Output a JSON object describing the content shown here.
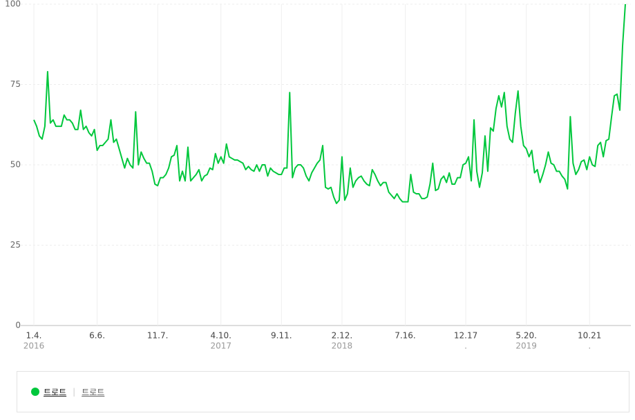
{
  "chart_data": {
    "type": "line",
    "series": [
      {
        "name": "트로트",
        "color": "#00c73c",
        "values": [
          64,
          62,
          59,
          58,
          62,
          79,
          63,
          64,
          62,
          62,
          62,
          65.5,
          64,
          64,
          63,
          61,
          61,
          67,
          61,
          62,
          60,
          59,
          61,
          54.5,
          56,
          56,
          57,
          58,
          64,
          57,
          58,
          55,
          52,
          49,
          52,
          50,
          49,
          66.5,
          50,
          54,
          52,
          50.5,
          50.5,
          48,
          44,
          43.5,
          46,
          46,
          47,
          49,
          52.5,
          53,
          56,
          45,
          48,
          45,
          55.5,
          45,
          46,
          47,
          48.5,
          45,
          46.5,
          47,
          49,
          48.5,
          53.5,
          50.5,
          52.5,
          50.5,
          56.5,
          52.5,
          52,
          51.5,
          51.5,
          51,
          50.5,
          48.5,
          49.5,
          48.5,
          48,
          50,
          48,
          50,
          50,
          46.5,
          49,
          48,
          47.5,
          47,
          47,
          49,
          49,
          72.5,
          46,
          49,
          50,
          50,
          49,
          46.5,
          45,
          47.5,
          49,
          50.5,
          51.5,
          56,
          43,
          42.5,
          43,
          40,
          38,
          39,
          52.5,
          39,
          41,
          49,
          43,
          45,
          46,
          46.5,
          45,
          44,
          43.5,
          48.5,
          47,
          45,
          43.5,
          44.5,
          44.5,
          41.5,
          40.5,
          39.5,
          41,
          39.5,
          38.5,
          38.5,
          38.5,
          47,
          41.5,
          41,
          41,
          39.5,
          39.5,
          40,
          44,
          50.5,
          42,
          42.5,
          45.5,
          46.5,
          44.5,
          47.5,
          44,
          44,
          46,
          46,
          50,
          50.5,
          52.5,
          45,
          64,
          48,
          43,
          47.5,
          59,
          48,
          61.5,
          60.5,
          67.5,
          71.5,
          68,
          72.5,
          62,
          58,
          57,
          66,
          73,
          62,
          56,
          55,
          52.5,
          54.5,
          47.5,
          48.5,
          44.5,
          47,
          50,
          54,
          50.5,
          50,
          48,
          48,
          46.5,
          45.5,
          42.5,
          65,
          50.5,
          47,
          48.5,
          51,
          51.5,
          48.5,
          52.5,
          50,
          49.5,
          56,
          57,
          52.5,
          57.5,
          58,
          65,
          71.5,
          72,
          67,
          87,
          100
        ]
      }
    ],
    "xlim": [
      0,
      215
    ],
    "xticks": [
      {
        "value": 0,
        "label": "1.4.",
        "sublabel": "2016"
      },
      {
        "value": 23,
        "label": "6.6."
      },
      {
        "value": 45,
        "label": "11.7."
      },
      {
        "value": 68,
        "label": "4.10.",
        "sublabel": "2017"
      },
      {
        "value": 90,
        "label": "9.11."
      },
      {
        "value": 112,
        "label": "2.12.",
        "sublabel": "2018"
      },
      {
        "value": 135,
        "label": "7.16."
      },
      {
        "value": 157,
        "label": "12.17",
        "sublabel": "."
      },
      {
        "value": 179,
        "label": "5.20.",
        "sublabel": "2019"
      },
      {
        "value": 202,
        "label": "10.21",
        "sublabel": "."
      }
    ],
    "ylim": [
      0,
      100
    ],
    "yticks": [
      0,
      25,
      50,
      75,
      100
    ],
    "grid": true,
    "legend_link": "트로트"
  }
}
